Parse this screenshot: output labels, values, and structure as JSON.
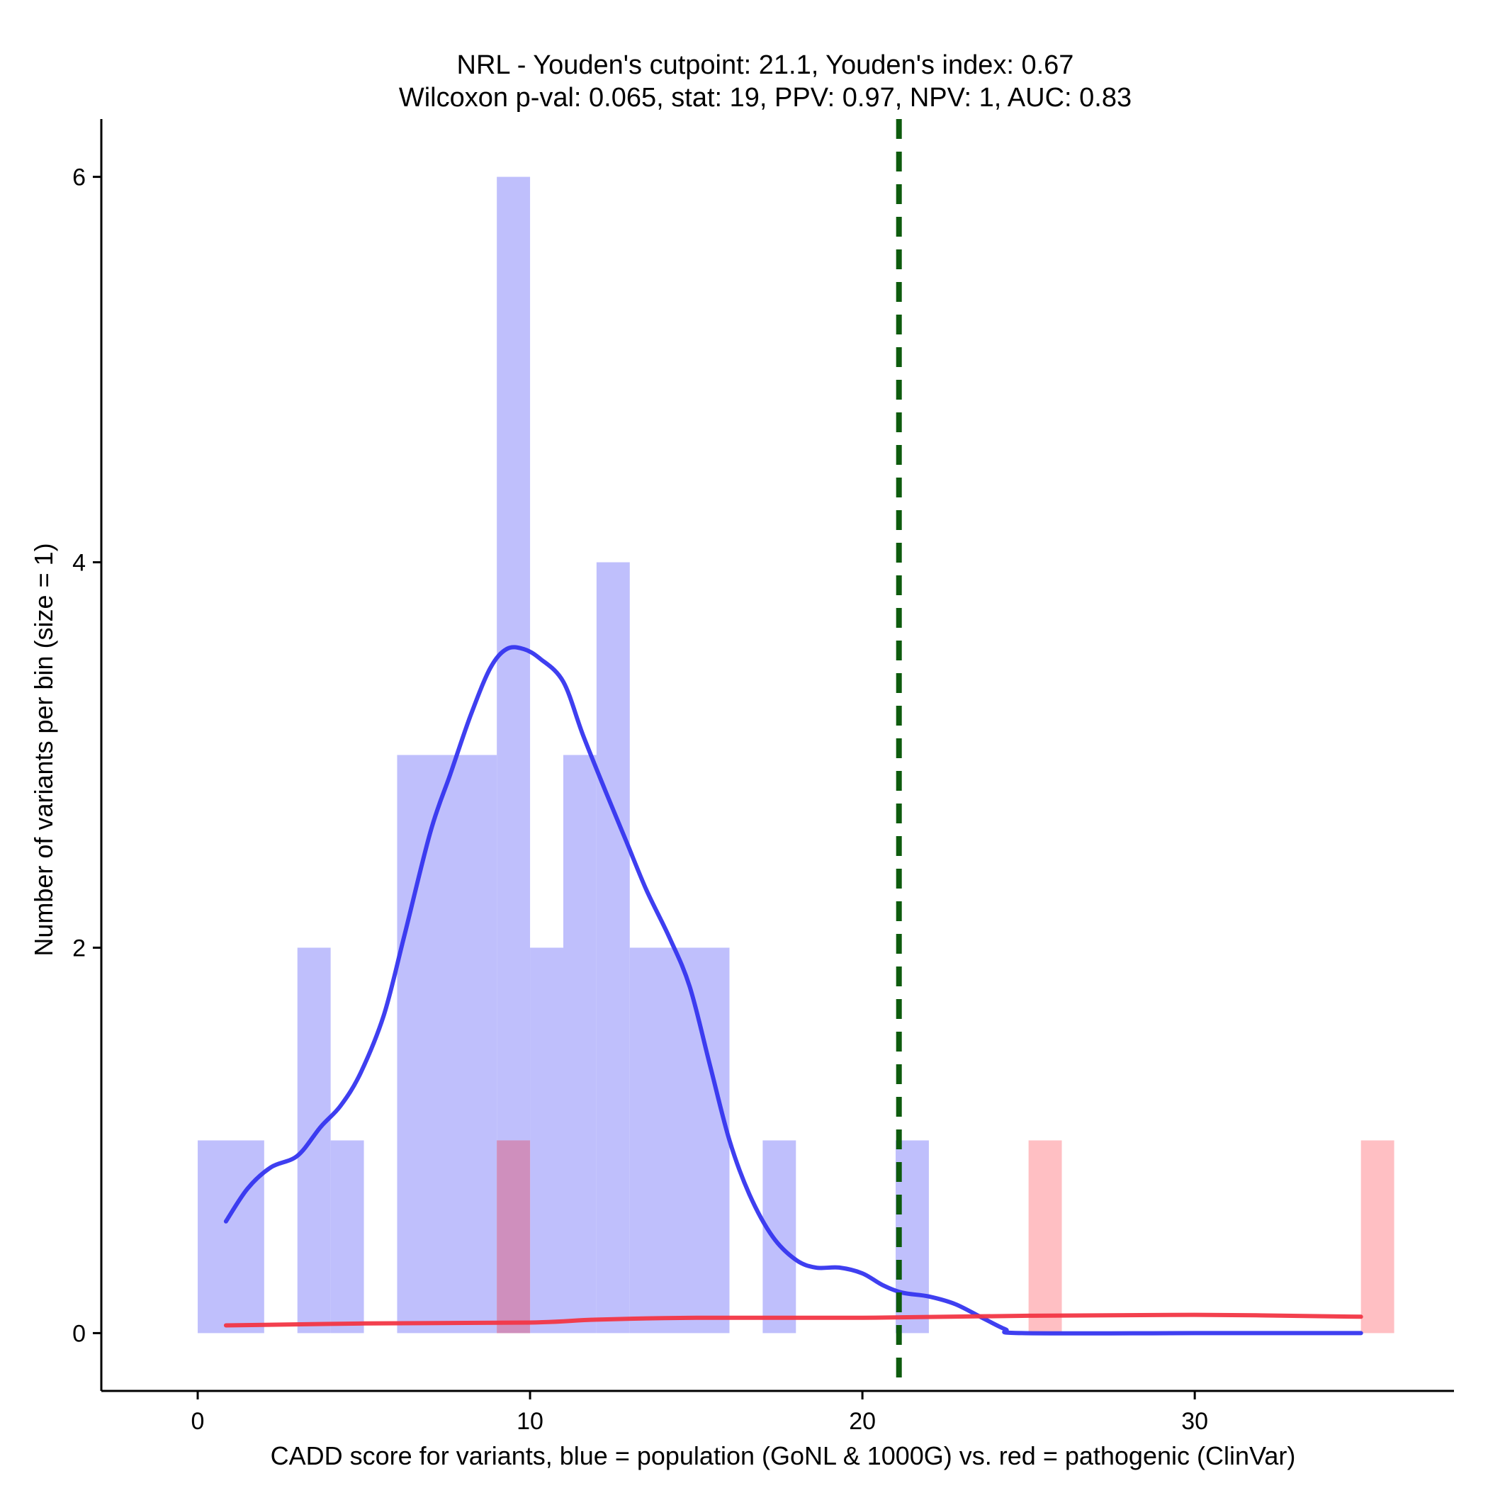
{
  "chart_data": {
    "type": "bar",
    "title": "NRL - Youden's cutpoint: 21.1, Youden's index: 0.67",
    "subtitle": "Wilcoxon p-val: 0.065, stat: 19, PPV: 0.97, NPV: 1, AUC: 0.83",
    "xlabel": "CADD score for variants, blue = population (GoNL & 1000G) vs. red = pathogenic (ClinVar)",
    "ylabel": "Number of variants per bin (size = 1)",
    "xlim": [
      -2.9,
      37.8
    ],
    "ylim": [
      -0.3,
      6.3
    ],
    "xticks": [
      0,
      10,
      20,
      30
    ],
    "yticks": [
      0,
      2,
      4,
      6
    ],
    "bin_width": 1,
    "cutpoint": 21.1,
    "colors": {
      "population_bar": "#bfbffc",
      "pathogenic_bar": "#ffbfc3",
      "overlap_bar": "#cf8fbd",
      "population_density": "#3535ef",
      "pathogenic_density": "#f23645",
      "cutpoint_line": "#0d5b0d"
    },
    "series": [
      {
        "name": "population (GoNL & 1000G)",
        "bins": [
          {
            "x0": 0,
            "x1": 2,
            "count": 1
          },
          {
            "x0": 3,
            "x1": 4,
            "count": 2
          },
          {
            "x0": 4,
            "x1": 5,
            "count": 1
          },
          {
            "x0": 6,
            "x1": 9,
            "count": 3
          },
          {
            "x0": 9,
            "x1": 10,
            "count": 6
          },
          {
            "x0": 10,
            "x1": 11,
            "count": 2
          },
          {
            "x0": 11,
            "x1": 12,
            "count": 3
          },
          {
            "x0": 12,
            "x1": 13,
            "count": 4
          },
          {
            "x0": 13,
            "x1": 16,
            "count": 2
          },
          {
            "x0": 17,
            "x1": 18,
            "count": 1
          },
          {
            "x0": 21,
            "x1": 22,
            "count": 1
          }
        ],
        "density": [
          [
            0.85,
            0.58
          ],
          [
            1.5,
            0.75
          ],
          [
            2.2,
            0.86
          ],
          [
            3.0,
            0.92
          ],
          [
            3.7,
            1.07
          ],
          [
            4.3,
            1.18
          ],
          [
            4.9,
            1.35
          ],
          [
            5.6,
            1.65
          ],
          [
            6.2,
            2.05
          ],
          [
            7.0,
            2.6
          ],
          [
            7.6,
            2.9
          ],
          [
            8.2,
            3.2
          ],
          [
            8.8,
            3.45
          ],
          [
            9.3,
            3.55
          ],
          [
            9.8,
            3.55
          ],
          [
            10.3,
            3.5
          ],
          [
            11.0,
            3.38
          ],
          [
            11.6,
            3.1
          ],
          [
            12.3,
            2.8
          ],
          [
            12.9,
            2.55
          ],
          [
            13.5,
            2.3
          ],
          [
            14.2,
            2.05
          ],
          [
            14.8,
            1.8
          ],
          [
            15.4,
            1.4
          ],
          [
            16.0,
            1.0
          ],
          [
            16.6,
            0.72
          ],
          [
            17.3,
            0.5
          ],
          [
            18.0,
            0.38
          ],
          [
            18.6,
            0.34
          ],
          [
            19.3,
            0.34
          ],
          [
            20.0,
            0.31
          ],
          [
            20.6,
            0.25
          ],
          [
            21.2,
            0.21
          ],
          [
            22.0,
            0.19
          ],
          [
            22.8,
            0.15
          ],
          [
            23.6,
            0.08
          ],
          [
            24.3,
            0.02
          ],
          [
            24.8,
            0.0
          ],
          [
            30.0,
            0.0
          ],
          [
            35.0,
            0.0
          ]
        ]
      },
      {
        "name": "pathogenic (ClinVar)",
        "bins": [
          {
            "x0": 9,
            "x1": 10,
            "count": 1
          },
          {
            "x0": 25,
            "x1": 26,
            "count": 1
          },
          {
            "x0": 35,
            "x1": 36,
            "count": 1
          }
        ],
        "density": [
          [
            0.85,
            0.04
          ],
          [
            5.0,
            0.05
          ],
          [
            10.0,
            0.055
          ],
          [
            12.0,
            0.07
          ],
          [
            15.0,
            0.08
          ],
          [
            20.0,
            0.08
          ],
          [
            25.0,
            0.09
          ],
          [
            30.0,
            0.095
          ],
          [
            35.0,
            0.085
          ]
        ]
      }
    ]
  }
}
